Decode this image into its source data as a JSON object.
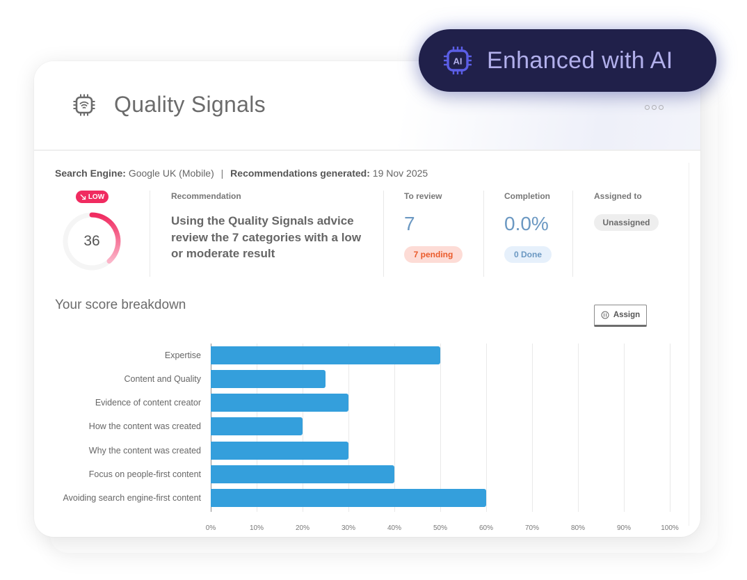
{
  "badge": {
    "label": "Enhanced with AI",
    "icon": "ai-chip-icon",
    "color": "#20204a",
    "text_color": "#b2b0ec"
  },
  "header": {
    "title": "Quality Signals",
    "icon": "chip-wifi-icon",
    "menu_icon": "more-horizontal-icon"
  },
  "meta": {
    "search_engine_label": "Search Engine:",
    "search_engine_value": "Google UK (Mobile)",
    "separator": "|",
    "generated_label": "Recommendations generated:",
    "generated_value": "19 Nov 2025"
  },
  "score": {
    "badge_label": "LOW",
    "badge_icon": "trend-down-icon",
    "value": "36",
    "max": 100,
    "color": "#f02b60"
  },
  "recommendation": {
    "label": "Recommendation",
    "text": "Using the Quality Signals advice review the 7 categories with a low or moderate result"
  },
  "to_review": {
    "label": "To review",
    "value": "7",
    "pill": "7 pending"
  },
  "completion": {
    "label": "Completion",
    "value": "0.0%",
    "pill": "0 Done"
  },
  "assigned": {
    "label": "Assigned to",
    "value": "Unassigned",
    "button_label": "Assign",
    "button_icon": "users-icon"
  },
  "breakdown": {
    "title": "Your score breakdown"
  },
  "chart_data": {
    "type": "bar",
    "orientation": "horizontal",
    "title": "Your score breakdown",
    "xlabel": "",
    "ylabel": "",
    "categories": [
      "Expertise",
      "Content and Quality",
      "Evidence of content creator",
      "How the content was created",
      "Why the content was created",
      "Focus on people-first content",
      "Avoiding search engine-first content"
    ],
    "values": [
      50,
      25,
      30,
      20,
      30,
      40,
      60
    ],
    "xlim": [
      0,
      100
    ],
    "x_ticks": [
      "0%",
      "10%",
      "20%",
      "30%",
      "40%",
      "50%",
      "60%",
      "70%",
      "80%",
      "90%",
      "100%"
    ],
    "bar_color": "#349fdc",
    "grid": true,
    "legend": "none"
  }
}
